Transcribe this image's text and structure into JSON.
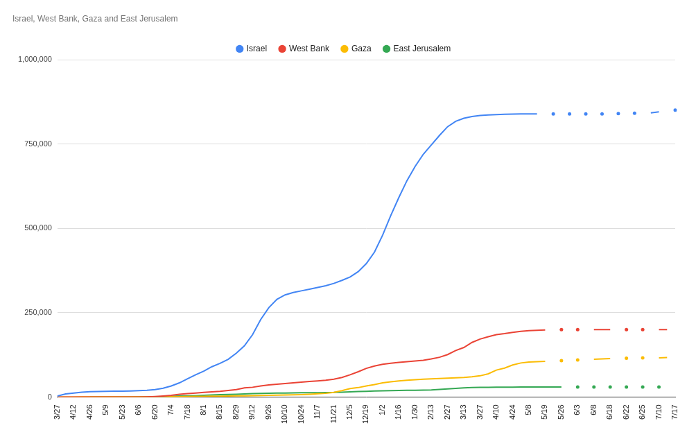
{
  "chart_data": {
    "type": "line",
    "title": "Israel, West Bank, Gaza and East Jerusalem",
    "categories": [
      "3/27",
      null,
      "4/12",
      null,
      "4/26",
      null,
      "5/9",
      null,
      "5/23",
      null,
      "6/6",
      null,
      "6/20",
      null,
      "7/4",
      null,
      "7/18",
      null,
      "8/1",
      null,
      "8/15",
      null,
      "8/29",
      null,
      "9/12",
      null,
      "9/26",
      null,
      "10/10",
      null,
      "10/24",
      null,
      "11/7",
      null,
      "11/21",
      null,
      "12/5",
      null,
      "12/19",
      null,
      "1/2",
      null,
      "1/16",
      null,
      "1/30",
      null,
      "2/13",
      null,
      "2/27",
      null,
      "3/13",
      null,
      "3/27",
      null,
      "4/10",
      null,
      "4/24",
      null,
      "5/8",
      null,
      "5/19",
      null,
      "5/26",
      null,
      "6/3",
      null,
      "6/8",
      null,
      "6/18",
      null,
      "6/22",
      null,
      "6/25",
      null,
      "7/10",
      null,
      "7/17"
    ],
    "series": [
      {
        "name": "Israel",
        "color": "#4285f4",
        "values": [
          3000,
          9000,
          12000,
          14500,
          16000,
          16500,
          17000,
          17200,
          17500,
          18000,
          18800,
          20000,
          22000,
          26000,
          33000,
          42000,
          54000,
          66000,
          77000,
          90000,
          100000,
          112000,
          130000,
          152000,
          185000,
          230000,
          265000,
          290000,
          303000,
          310000,
          315000,
          320000,
          325000,
          330000,
          337000,
          346000,
          356000,
          372000,
          396000,
          430000,
          480000,
          538000,
          592000,
          642000,
          684000,
          720000,
          748000,
          776000,
          802000,
          818000,
          827000,
          832000,
          835000,
          837000,
          838000,
          839000,
          839500,
          840000,
          840000,
          840000,
          null,
          840000,
          null,
          840000,
          null,
          840000,
          null,
          840000,
          null,
          841000,
          null,
          842000,
          null,
          843000,
          846000,
          null,
          851000
        ]
      },
      {
        "name": "West Bank",
        "color": "#ea4335",
        "values": [
          0,
          0,
          0,
          0,
          0,
          0,
          0,
          0,
          0,
          0,
          0,
          500,
          1500,
          3000,
          5000,
          8000,
          10000,
          12000,
          14000,
          15500,
          17000,
          19500,
          22000,
          27000,
          29000,
          33000,
          36000,
          38000,
          40000,
          42000,
          44000,
          46000,
          48000,
          50000,
          53000,
          58000,
          66000,
          75000,
          85000,
          92000,
          97000,
          100000,
          103000,
          105000,
          107000,
          109000,
          113000,
          118000,
          126000,
          138000,
          147000,
          162000,
          172000,
          179000,
          185000,
          188000,
          192000,
          195000,
          197000,
          198000,
          199000,
          null,
          200000,
          null,
          200000,
          null,
          200000,
          200000,
          200000,
          null,
          200000,
          null,
          200000,
          null,
          200000,
          200000,
          null
        ]
      },
      {
        "name": "Gaza",
        "color": "#fbbc04",
        "values": [
          0,
          100,
          200,
          300,
          400,
          450,
          470,
          480,
          500,
          520,
          550,
          600,
          700,
          800,
          1000,
          1200,
          1500,
          1800,
          2000,
          2300,
          2600,
          3000,
          3300,
          3600,
          3900,
          4500,
          5000,
          5500,
          6000,
          6500,
          7000,
          8000,
          9500,
          11000,
          14000,
          19000,
          25000,
          28000,
          33000,
          37000,
          42000,
          45000,
          48000,
          50000,
          51500,
          53000,
          54000,
          55000,
          56000,
          57000,
          58000,
          60000,
          63000,
          69000,
          80000,
          86000,
          95000,
          101000,
          104000,
          105000,
          106000,
          null,
          108000,
          null,
          110000,
          null,
          112000,
          113000,
          114000,
          null,
          115000,
          null,
          116000,
          null,
          116000,
          117000,
          null
        ]
      },
      {
        "name": "East Jerusalem",
        "color": "#34a853",
        "values": [
          null,
          null,
          null,
          null,
          0,
          0,
          0,
          0,
          100,
          200,
          300,
          500,
          800,
          1200,
          2000,
          2800,
          3500,
          4200,
          5000,
          6000,
          7000,
          7600,
          8200,
          9000,
          10000,
          10800,
          11500,
          11800,
          12000,
          12300,
          12600,
          12800,
          13000,
          13300,
          13600,
          14500,
          15500,
          16300,
          17000,
          17800,
          18500,
          19000,
          19500,
          19800,
          20000,
          20300,
          21000,
          22500,
          24000,
          25500,
          27000,
          28000,
          28500,
          29000,
          29200,
          29300,
          29500,
          29600,
          29700,
          29800,
          29900,
          30000,
          30000,
          null,
          30000,
          null,
          30000,
          null,
          30000,
          null,
          30000,
          null,
          30000,
          null,
          30000,
          null,
          null
        ]
      }
    ],
    "ylim": [
      0,
      1000000
    ],
    "yticks": [
      0,
      {
        "value": 250000,
        "label": "250,000"
      },
      {
        "value": 500000,
        "label": "500,000"
      },
      {
        "value": 750000,
        "label": "750,000"
      },
      {
        "value": 1000000,
        "label": "1,000,000"
      }
    ],
    "grid": true,
    "legend": "top"
  }
}
